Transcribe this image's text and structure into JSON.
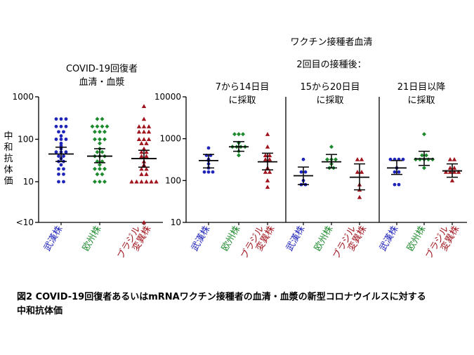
{
  "y_axis_label": "中和抗体価",
  "header": {
    "right_title_1": "ワクチン接種者血清",
    "right_title_2": "2回目の接種後："
  },
  "caption": {
    "line1": "図2  COVID-19回復者あるいはmRNAワクチン接種者の血清・血漿の新型コロナウイルスに対する",
    "line2": "中和抗体価"
  },
  "colors": {
    "wuhan": "#1f24b8",
    "europe": "#1e8a2e",
    "brazil": "#a0141e"
  },
  "chart_data": [
    {
      "type": "scatter",
      "title_lines": [
        "COVID-19回復者",
        "血清・血漿"
      ],
      "yscale": "log",
      "ylim": [
        8,
        1000
      ],
      "yticks": [
        "1000",
        "100",
        "10",
        "<10"
      ],
      "categories": [
        [
          "武漢株"
        ],
        [
          "欧州株"
        ],
        [
          "ブラジル",
          "変異株"
        ]
      ],
      "series": [
        {
          "values": [
            300,
            300,
            300,
            200,
            200,
            200,
            150,
            150,
            120,
            100,
            100,
            100,
            80,
            70,
            60,
            50,
            50,
            50,
            40,
            40,
            35,
            30,
            30,
            25,
            20,
            20,
            15,
            15,
            10,
            10
          ],
          "mean": 45,
          "ci": [
            30,
            65
          ]
        },
        {
          "values": [
            300,
            300,
            200,
            200,
            200,
            200,
            150,
            150,
            150,
            100,
            100,
            100,
            80,
            60,
            50,
            50,
            40,
            40,
            40,
            30,
            30,
            25,
            20,
            20,
            20,
            15,
            15,
            10,
            10,
            10
          ],
          "mean": 40,
          "ci": [
            28,
            60
          ]
        },
        {
          "values": [
            600,
            300,
            200,
            200,
            200,
            150,
            150,
            150,
            100,
            100,
            100,
            80,
            80,
            60,
            50,
            50,
            40,
            40,
            30,
            25,
            20,
            20,
            15,
            15,
            10,
            10,
            10,
            10,
            10,
            10,
            8
          ],
          "mean": 35,
          "ci": [
            22,
            55
          ]
        }
      ]
    },
    {
      "type": "scatter",
      "title_lines": [
        "7から14日目",
        "に採取"
      ],
      "yscale": "log",
      "ylim": [
        10,
        10000
      ],
      "yticks": [
        "10000",
        "1000",
        "100",
        "10"
      ],
      "categories": [
        [
          "武漢株"
        ],
        [
          "欧州株"
        ],
        [
          "ブラジル",
          "変異株"
        ]
      ],
      "series": [
        {
          "values": [
            600,
            400,
            400,
            320,
            300,
            250,
            200,
            160,
            160,
            160
          ],
          "mean": 300,
          "ci": [
            200,
            420
          ]
        },
        {
          "values": [
            1280,
            1280,
            1280,
            800,
            640,
            640,
            640,
            640,
            500,
            400
          ],
          "mean": 640,
          "ci": [
            500,
            850
          ]
        },
        {
          "values": [
            1280,
            640,
            400,
            400,
            320,
            320,
            200,
            160,
            160,
            100,
            70
          ],
          "mean": 280,
          "ci": [
            180,
            450
          ]
        }
      ]
    },
    {
      "type": "scatter",
      "title_lines": [
        "15から20日目",
        "に採取"
      ],
      "yscale": "log",
      "ylim": [
        10,
        10000
      ],
      "yticks": [],
      "categories": [
        [
          "武漢株"
        ],
        [
          "欧州株"
        ],
        [
          "ブラジル",
          "変異株"
        ]
      ],
      "series": [
        {
          "values": [
            320,
            160,
            160,
            100,
            80,
            80
          ],
          "mean": 130,
          "ci": [
            80,
            210
          ]
        },
        {
          "values": [
            640,
            320,
            320,
            320,
            250,
            200,
            200
          ],
          "mean": 280,
          "ci": [
            200,
            420
          ]
        },
        {
          "values": [
            320,
            320,
            160,
            160,
            80,
            60,
            40
          ],
          "mean": 120,
          "ci": [
            60,
            250
          ]
        }
      ]
    },
    {
      "type": "scatter",
      "title_lines": [
        "21日目以降",
        "に採取"
      ],
      "yscale": "log",
      "ylim": [
        10,
        10000
      ],
      "yticks": [],
      "categories": [
        [
          "武漢株"
        ],
        [
          "欧州株"
        ],
        [
          "ブラジル",
          "変異株"
        ]
      ],
      "series": [
        {
          "values": [
            320,
            320,
            320,
            320,
            200,
            160,
            160,
            80,
            80
          ],
          "mean": 200,
          "ci": [
            140,
            300
          ]
        },
        {
          "values": [
            1280,
            400,
            400,
            320,
            320,
            320,
            320,
            320,
            200
          ],
          "mean": 330,
          "ci": [
            230,
            500
          ]
        },
        {
          "values": [
            320,
            320,
            200,
            200,
            160,
            160,
            160,
            160,
            100
          ],
          "mean": 170,
          "ci": [
            120,
            250
          ]
        }
      ]
    }
  ]
}
